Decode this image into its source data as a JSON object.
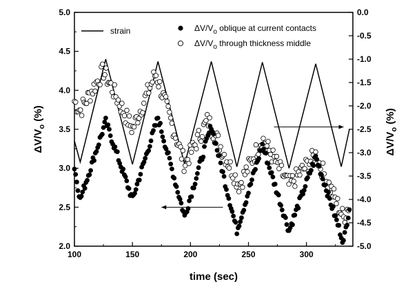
{
  "chart_data": {
    "type": "scatter",
    "xlabel": "time (sec)",
    "ylabel_left": "ΔV/V",
    "ylabel_left_sub": "o",
    "ylabel_left_unit": " (%)",
    "ylabel_right": "ΔV/V",
    "ylabel_right_sub": "o",
    "ylabel_right_unit": " (%)",
    "xlim": [
      100,
      340
    ],
    "ylim_left": [
      2.0,
      5.0
    ],
    "ylim_right": [
      -5.0,
      0.0
    ],
    "xticks": [
      "100",
      "150",
      "200",
      "250",
      "300"
    ],
    "yticks_left": [
      "2.0",
      "2.5",
      "3.0",
      "3.5",
      "4.0",
      "4.5",
      "5.0"
    ],
    "yticks_right": [
      "-5.0",
      "-4.5",
      "-4.0",
      "-3.5",
      "-3.0",
      "-2.5",
      "-2.0",
      "-1.5",
      "-1.0",
      "-0.5",
      "0.0"
    ],
    "legend_position": "top",
    "legend": [
      {
        "text": "strain",
        "sub": "",
        "text_after": "",
        "style": "line"
      },
      {
        "text": "ΔV/V",
        "sub": "o",
        "text_after": " oblique at current contacts",
        "style": "filled-circle"
      },
      {
        "text": "ΔV/V",
        "sub": "o",
        "text_after": "  through thickness middle",
        "style": "open-circle"
      }
    ],
    "series": [
      {
        "name": "strain",
        "axis": "left",
        "style": "line",
        "points": [
          [
            100,
            3.35
          ],
          [
            105,
            3.08
          ],
          [
            127,
            4.4
          ],
          [
            150,
            3.05
          ],
          [
            172,
            4.37
          ],
          [
            195,
            3.05
          ],
          [
            218,
            4.37
          ],
          [
            240,
            3.02
          ],
          [
            262,
            4.36
          ],
          [
            285,
            3.0
          ],
          [
            308,
            4.34
          ],
          [
            330,
            3.02
          ],
          [
            337,
            3.5
          ]
        ]
      },
      {
        "name": "ΔV/V o oblique at current contacts",
        "axis": "left",
        "style": "filled",
        "peaks": [
          [
            100,
            3.0
          ],
          [
            105,
            2.6
          ],
          [
            127,
            3.6
          ],
          [
            150,
            2.6
          ],
          [
            172,
            3.65
          ],
          [
            195,
            2.38
          ],
          [
            218,
            3.55
          ],
          [
            240,
            2.2
          ],
          [
            262,
            3.3
          ],
          [
            285,
            2.2
          ],
          [
            308,
            3.15
          ],
          [
            332,
            2.05
          ],
          [
            337,
            2.5
          ]
        ]
      },
      {
        "name": "ΔV/V o through thickness middle",
        "axis": "right",
        "style": "open",
        "peaks": [
          [
            100,
            -1.9
          ],
          [
            105,
            -2.1
          ],
          [
            125,
            -1.25
          ],
          [
            150,
            -2.5
          ],
          [
            170,
            -1.3
          ],
          [
            195,
            -3.25
          ],
          [
            215,
            -2.3
          ],
          [
            242,
            -3.7
          ],
          [
            262,
            -2.7
          ],
          [
            285,
            -3.7
          ],
          [
            308,
            -3.05
          ],
          [
            332,
            -4.4
          ],
          [
            337,
            -4.1
          ]
        ]
      }
    ],
    "annotations": [
      {
        "text": "arrow pointing left toward left axis",
        "x_from": 228,
        "x_to": 175,
        "y": 2.5,
        "axis": "left"
      },
      {
        "text": "arrow pointing right toward right axis",
        "x_from": 272,
        "x_to": 332,
        "y": -2.45,
        "axis": "right"
      }
    ],
    "grid": false
  }
}
